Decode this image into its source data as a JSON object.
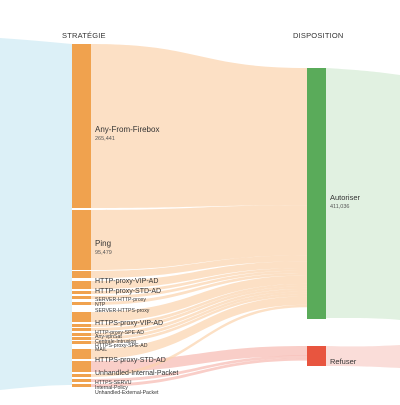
{
  "headers": {
    "strategy": "STRATÉGIE",
    "disposition": "DISPOSITION"
  },
  "colors": {
    "strategy_node": "#f0a24e",
    "autoriser": "#5aab5a",
    "refuser": "#e8553f",
    "flow_allow": "#fbd3ad",
    "flow_deny": "#f7b9b0",
    "left_band": "#bfe3f1",
    "right_band_green": "#cde8cd",
    "right_band_red": "#f6c6c0"
  },
  "strategies": [
    {
      "id": "any-from-firebox",
      "name": "Any-From-Firebox",
      "value": "265,441",
      "size": "big"
    },
    {
      "id": "ping",
      "name": "Ping",
      "value": "95,479",
      "size": "big"
    },
    {
      "id": "http-proxy-vip-ad",
      "name": "HTTP-proxy-VIP-AD",
      "size": "medium"
    },
    {
      "id": "http-proxy-std-ad",
      "name": "HTTP-proxy-STD-AD",
      "size": "medium"
    },
    {
      "id": "server-http-proxy",
      "name": "SERVER-HTTP-proxy",
      "size": "small"
    },
    {
      "id": "ntp",
      "name": "NTP",
      "size": "small"
    },
    {
      "id": "server-https-proxy",
      "name": "SERVER-HTTPS-proxy",
      "size": "small"
    },
    {
      "id": "https-proxy-vip-ad",
      "name": "HTTPS-proxy-VIP-AD",
      "size": "medium"
    },
    {
      "id": "http-proxy-spe-ad",
      "name": "HTTP-proxy-SPE-AD",
      "size": "small"
    },
    {
      "id": "any-vpn",
      "name": "Any-vpnSat",
      "size": "small"
    },
    {
      "id": "centrale-intrusion",
      "name": "Centrale-Intrusion",
      "size": "small"
    },
    {
      "id": "https-proxy-spe-ad",
      "name": "HTTPS-proxy-SPE-AD",
      "size": "small"
    },
    {
      "id": "mail",
      "name": "MAIL",
      "size": "small"
    },
    {
      "id": "https-proxy-std-ad",
      "name": "HTTPS-proxy-STD-AD",
      "size": "medium"
    },
    {
      "id": "unhandled-internal-packet",
      "name": "Unhandled-Internal-Packet",
      "size": "medium"
    },
    {
      "id": "https-servu",
      "name": "HTTPS-SERVU",
      "size": "small"
    },
    {
      "id": "internal-policy",
      "name": "Internal-Policy",
      "size": "small"
    },
    {
      "id": "unhandled-external-packet",
      "name": "Unhandled-External-Packet",
      "size": "small"
    }
  ],
  "dispositions": [
    {
      "id": "autoriser",
      "name": "Autoriser",
      "value": "411,036"
    },
    {
      "id": "refuser",
      "name": "Refuser"
    }
  ]
}
